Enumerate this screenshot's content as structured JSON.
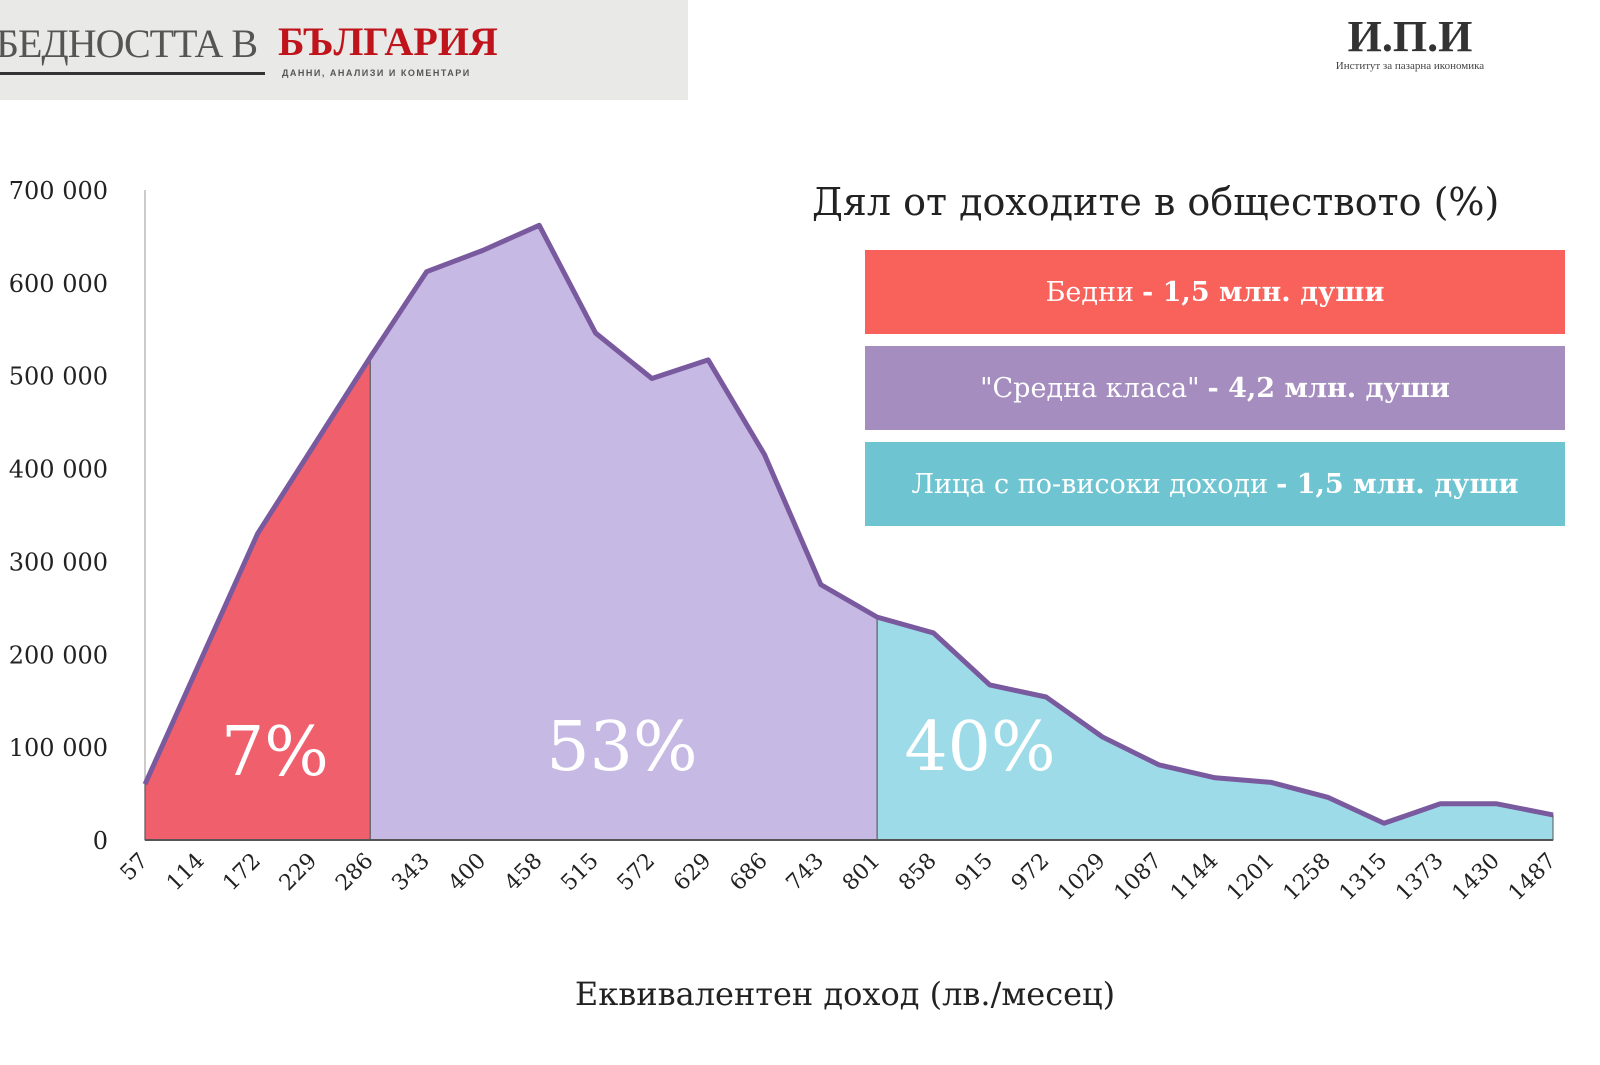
{
  "banner": {
    "title_gray": "БЕДНОСТТА В",
    "title_red": "БЪЛГАРИЯ",
    "subtitle": "ДАННИ, АНАЛИЗИ И КОМЕНТАРИ"
  },
  "logo": {
    "name": "И.П.И",
    "full": "Институт за пазарна икономика"
  },
  "legend": {
    "title": "Дял от доходите в обществото (%)",
    "items": [
      {
        "label": "Бедни",
        "detail": "- 1,5 млн. души",
        "color": "#f8625a"
      },
      {
        "label": "\"Средна класа\"",
        "detail": "- 4,2 млн. души",
        "color": "#a58dbf"
      },
      {
        "label": "Лица с по-високи доходи",
        "detail": "- 1,5 млн. души",
        "color": "#6ec4d0"
      }
    ]
  },
  "chart_data": {
    "type": "area",
    "xlabel": "Еквивалентен доход (лв./месец)",
    "ylabel": "",
    "ylim": [
      0,
      700000
    ],
    "yticks": [
      0,
      100000,
      200000,
      300000,
      400000,
      500000,
      600000,
      700000
    ],
    "ytick_labels": [
      "0",
      "100 000",
      "200 000",
      "300 000",
      "400 000",
      "500 000",
      "600 000",
      "700 000"
    ],
    "categories": [
      "57",
      "114",
      "172",
      "229",
      "286",
      "343",
      "400",
      "458",
      "515",
      "572",
      "629",
      "686",
      "743",
      "801",
      "858",
      "915",
      "972",
      "1029",
      "1087",
      "1144",
      "1201",
      "1258",
      "1315",
      "1373",
      "1430",
      "1487"
    ],
    "values": [
      60000,
      195000,
      330000,
      425000,
      520000,
      612000,
      635000,
      662000,
      546000,
      497000,
      517000,
      415000,
      275000,
      240000,
      223000,
      167000,
      154000,
      111000,
      81000,
      67000,
      62000,
      46000,
      18000,
      39000,
      39000,
      27000
    ],
    "segments": [
      {
        "name": "Бедни",
        "from": "57",
        "to": "286",
        "share": "7%",
        "color": "#f0606c"
      },
      {
        "name": "Средна класа",
        "from": "286",
        "to": "801",
        "share": "53%",
        "color": "#c6b9e4"
      },
      {
        "name": "Лица с по-високи доходи",
        "from": "801",
        "to": "1487",
        "share": "40%",
        "color": "#9ddbe8"
      }
    ],
    "line_color": "#7a5a9e"
  }
}
